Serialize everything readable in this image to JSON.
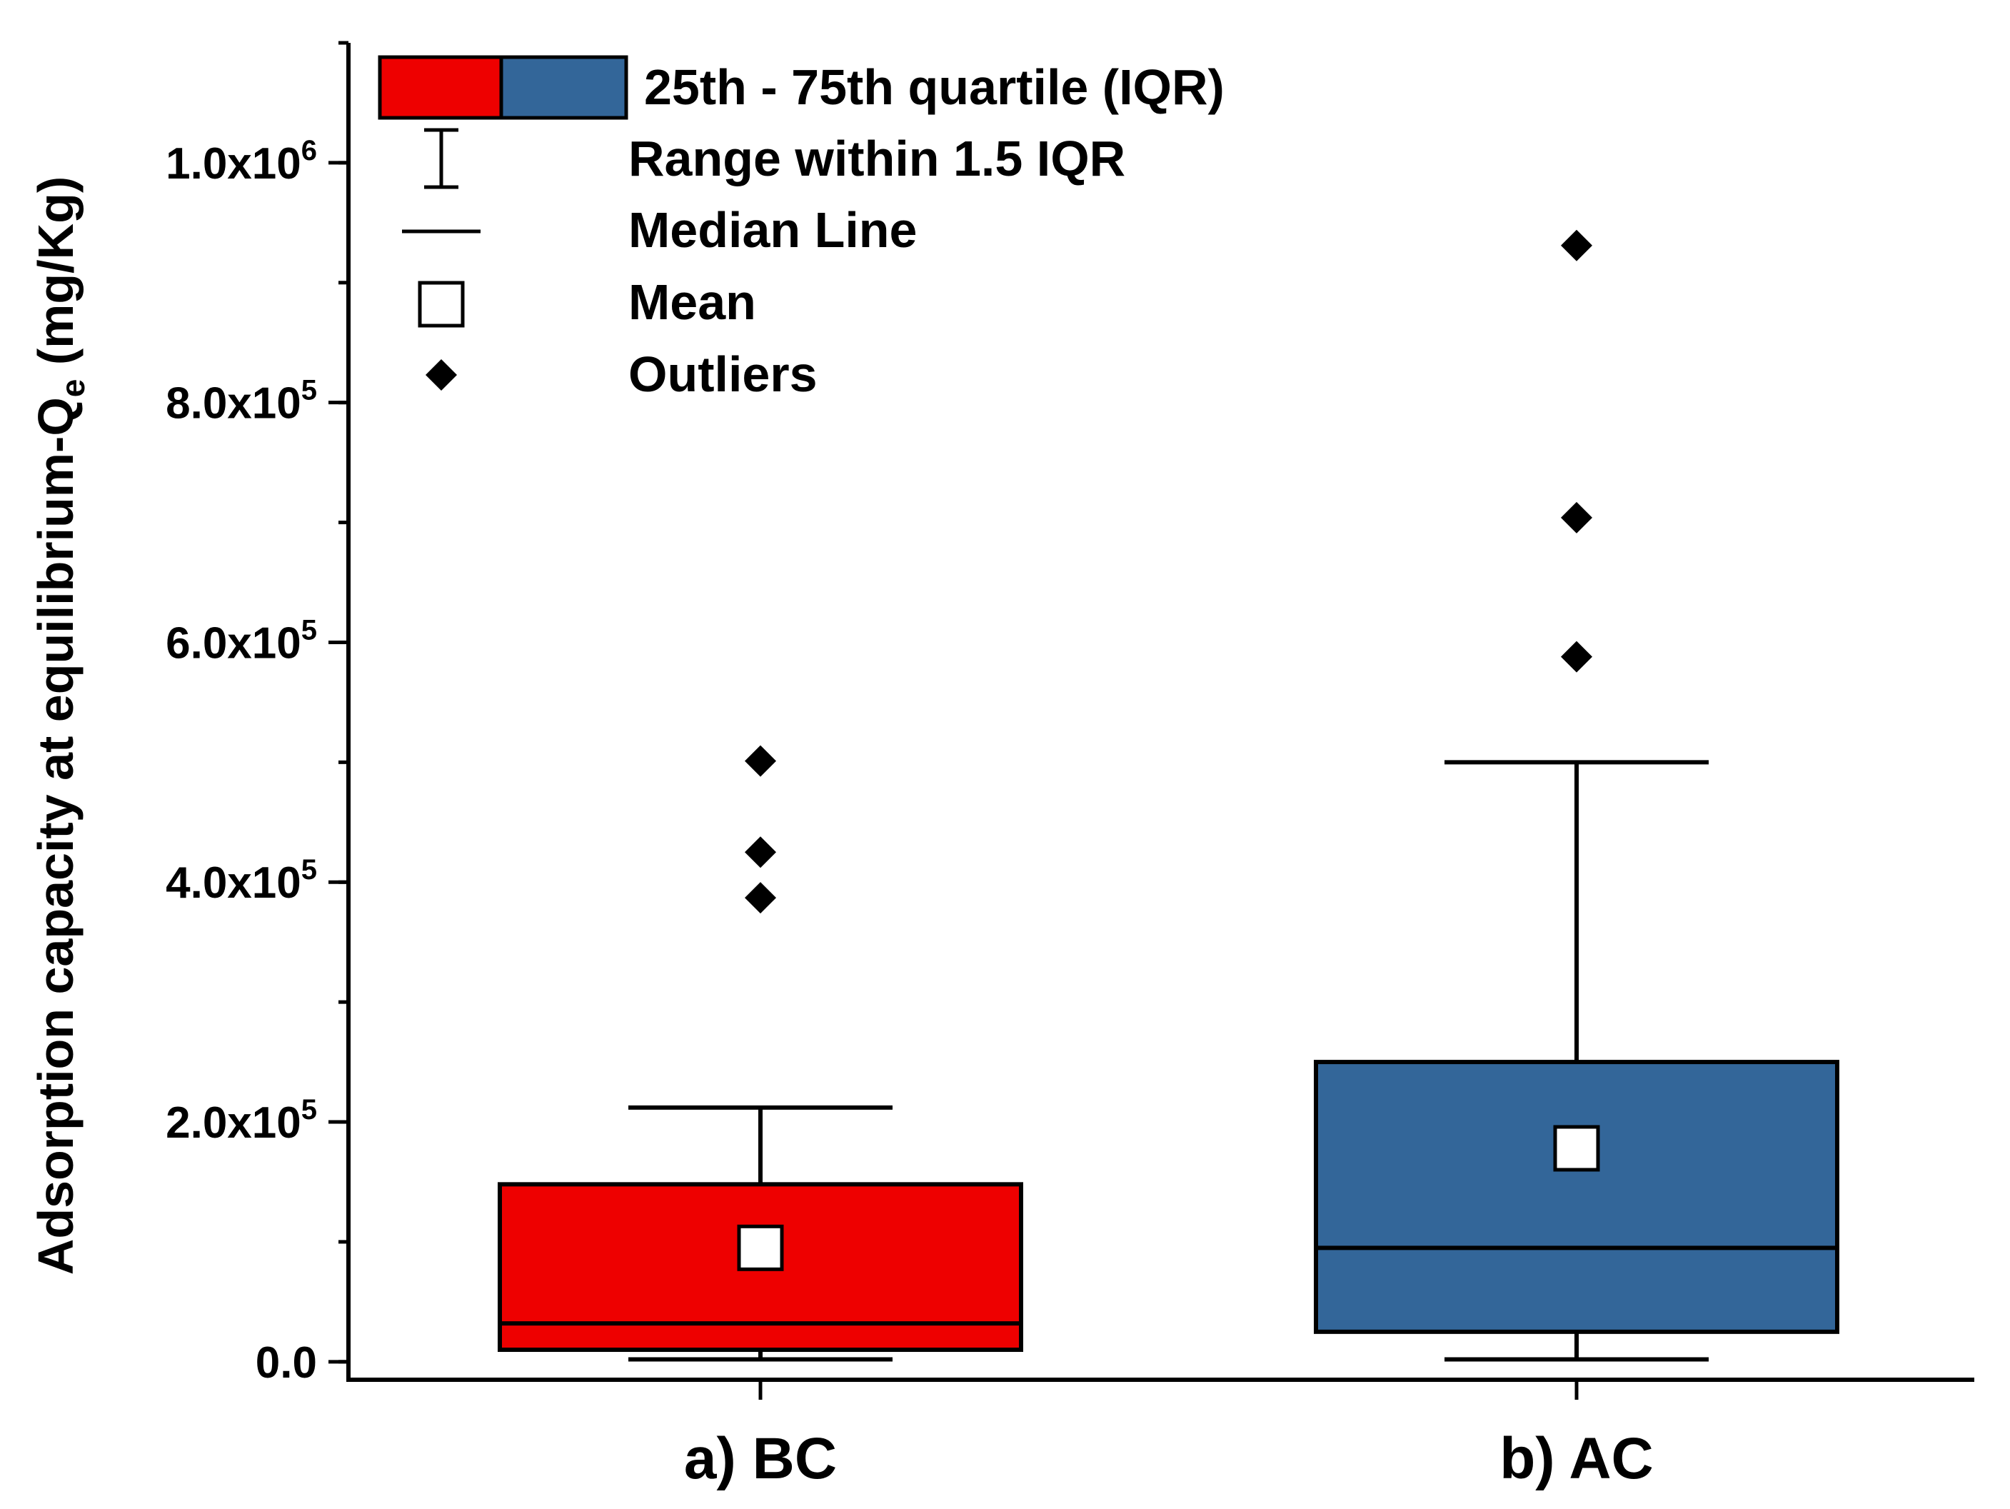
{
  "chart_data": {
    "type": "box",
    "title": "",
    "xlabel": "",
    "ylabel": {
      "main": "Adsorption capacity at equilibrium-Q",
      "subscript": "e",
      "unit": " (mg/Kg)"
    },
    "ylim": [
      -15000,
      1100000
    ],
    "yticks": [
      {
        "value": 0,
        "mantissa": "0.0",
        "exponent": ""
      },
      {
        "value": 200000,
        "mantissa": "2.0x10",
        "exponent": "5"
      },
      {
        "value": 400000,
        "mantissa": "4.0x10",
        "exponent": "5"
      },
      {
        "value": 600000,
        "mantissa": "6.0x10",
        "exponent": "5"
      },
      {
        "value": 800000,
        "mantissa": "8.0x10",
        "exponent": "5"
      },
      {
        "value": 1000000,
        "mantissa": "1.0x10",
        "exponent": "6"
      }
    ],
    "y_minor_step": 100000,
    "categories": [
      "a) BC",
      "b) AC"
    ],
    "series": [
      {
        "name": "a) BC",
        "color": "#ee0000",
        "q1": 10000,
        "median": 32000,
        "q3": 148000,
        "whisker_low": 2000,
        "whisker_high": 212000,
        "mean": 95000,
        "outliers": [
          387000,
          425000,
          501000
        ]
      },
      {
        "name": "b) AC",
        "color": "#336699",
        "q1": 25000,
        "median": 95000,
        "q3": 250000,
        "whisker_low": 2000,
        "whisker_high": 500000,
        "mean": 178000,
        "outliers": [
          588000,
          704000,
          931000
        ]
      }
    ],
    "legend": {
      "position": "top-left",
      "items": [
        {
          "symbol": "box",
          "label": "25th - 75th quartile (IQR)"
        },
        {
          "symbol": "whisker",
          "label": "Range within 1.5 IQR"
        },
        {
          "symbol": "median",
          "label": "Median Line"
        },
        {
          "symbol": "mean",
          "label": "Mean"
        },
        {
          "symbol": "outlier",
          "label": "Outliers"
        }
      ]
    }
  }
}
